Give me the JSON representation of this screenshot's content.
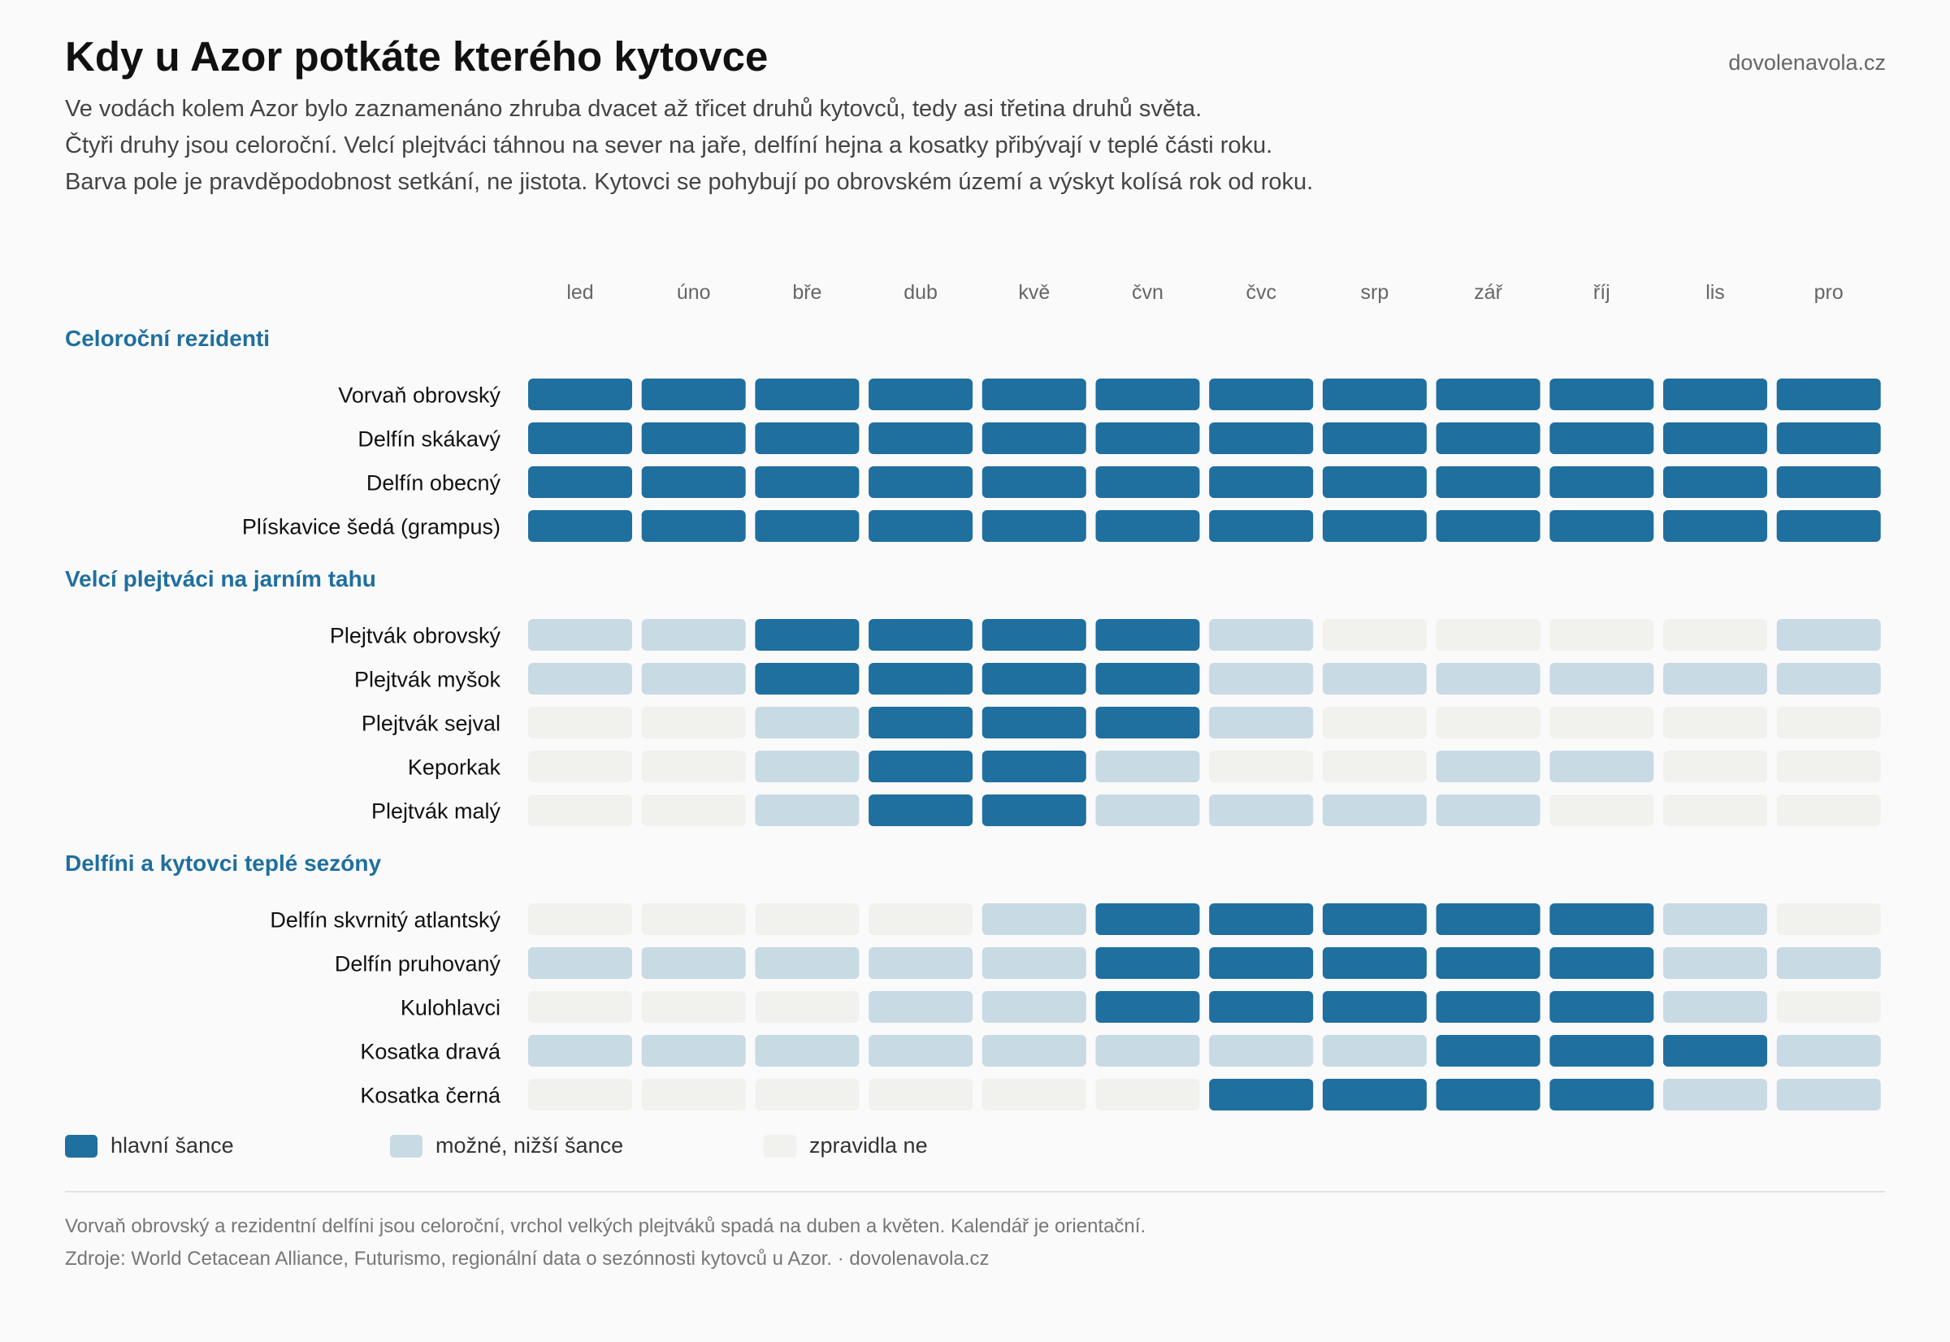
{
  "header": {
    "title": "Kdy u Azor potkáte kterého kytovce",
    "brand": "dovolenavola.cz",
    "subtitle_lines": [
      "Ve vodách kolem Azor bylo zaznamenáno zhruba dvacet až třicet druhů kytovců, tedy asi třetina druhů světa.",
      "Čtyři druhy jsou celoroční. Velcí plejtváci táhnou na sever na jaře, delfíní hejna a kosatky přibývají v teplé části roku.",
      "Barva pole je pravděpodobnost setkání, ne jistota. Kytovci se pohybují po obrovském území a výskyt kolísá rok od roku."
    ]
  },
  "chart_data": {
    "type": "heatmap",
    "months": [
      "led",
      "úno",
      "bře",
      "dub",
      "kvě",
      "čvn",
      "čvc",
      "srp",
      "zář",
      "říj",
      "lis",
      "pro"
    ],
    "levels": {
      "2": {
        "label": "hlavní šance",
        "color": "#1f6f9f"
      },
      "1": {
        "label": "možné, nižší šance",
        "color": "#c8dae4"
      },
      "0": {
        "label": "zpravidla ne",
        "color": "#f1f1ee"
      }
    },
    "groups": [
      {
        "name": "Celoroční rezidenti",
        "rows": [
          {
            "label": "Vorvaň obrovský",
            "values": [
              2,
              2,
              2,
              2,
              2,
              2,
              2,
              2,
              2,
              2,
              2,
              2
            ]
          },
          {
            "label": "Delfín skákavý",
            "values": [
              2,
              2,
              2,
              2,
              2,
              2,
              2,
              2,
              2,
              2,
              2,
              2
            ]
          },
          {
            "label": "Delfín obecný",
            "values": [
              2,
              2,
              2,
              2,
              2,
              2,
              2,
              2,
              2,
              2,
              2,
              2
            ]
          },
          {
            "label": "Plískavice šedá (grampus)",
            "values": [
              2,
              2,
              2,
              2,
              2,
              2,
              2,
              2,
              2,
              2,
              2,
              2
            ]
          }
        ]
      },
      {
        "name": "Velcí plejtváci na jarním tahu",
        "rows": [
          {
            "label": "Plejtvák obrovský",
            "values": [
              1,
              1,
              2,
              2,
              2,
              2,
              1,
              0,
              0,
              0,
              0,
              1
            ]
          },
          {
            "label": "Plejtvák myšok",
            "values": [
              1,
              1,
              2,
              2,
              2,
              2,
              1,
              1,
              1,
              1,
              1,
              1
            ]
          },
          {
            "label": "Plejtvák sejval",
            "values": [
              0,
              0,
              1,
              2,
              2,
              2,
              1,
              0,
              0,
              0,
              0,
              0
            ]
          },
          {
            "label": "Keporkak",
            "values": [
              0,
              0,
              1,
              2,
              2,
              1,
              0,
              0,
              1,
              1,
              0,
              0
            ]
          },
          {
            "label": "Plejtvák malý",
            "values": [
              0,
              0,
              1,
              2,
              2,
              1,
              1,
              1,
              1,
              0,
              0,
              0
            ]
          }
        ]
      },
      {
        "name": "Delfíni a kytovci teplé sezóny",
        "rows": [
          {
            "label": "Delfín skvrnitý atlantský",
            "values": [
              0,
              0,
              0,
              0,
              1,
              2,
              2,
              2,
              2,
              2,
              1,
              0
            ]
          },
          {
            "label": "Delfín pruhovaný",
            "values": [
              1,
              1,
              1,
              1,
              1,
              2,
              2,
              2,
              2,
              2,
              1,
              1
            ]
          },
          {
            "label": "Kulohlavci",
            "values": [
              0,
              0,
              0,
              1,
              1,
              2,
              2,
              2,
              2,
              2,
              1,
              0
            ]
          },
          {
            "label": "Kosatka dravá",
            "values": [
              1,
              1,
              1,
              1,
              1,
              1,
              1,
              1,
              2,
              2,
              2,
              1
            ]
          },
          {
            "label": "Kosatka černá",
            "values": [
              0,
              0,
              0,
              0,
              0,
              0,
              2,
              2,
              2,
              2,
              1,
              1
            ]
          }
        ]
      }
    ]
  },
  "legend": [
    {
      "label": "hlavní šance",
      "color": "#1f6f9f"
    },
    {
      "label": "možné, nižší šance",
      "color": "#c8dae4"
    },
    {
      "label": "zpravidla ne",
      "color": "#f1f1ee"
    }
  ],
  "footnotes": [
    "Vorvaň obrovský a rezidentní delfíni jsou celoroční, vrchol velkých plejtváků spadá na duben a květen. Kalendář je orientační.",
    "Zdroje: World Cetacean Alliance, Futurismo, regionální data o sezónnosti kytovců u Azor. · dovolenavola.cz"
  ],
  "colors": {
    "group_heading": "#1f6f9f",
    "month_label": "#666666"
  }
}
